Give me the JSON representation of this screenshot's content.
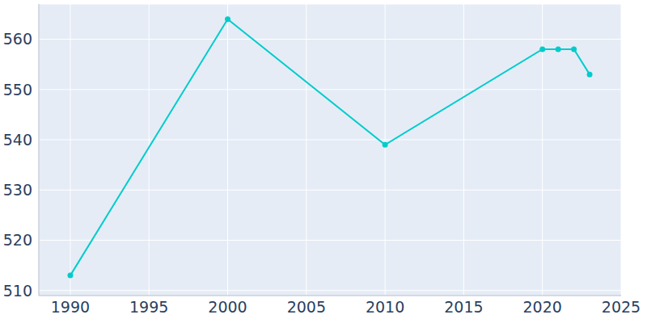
{
  "chart_data": {
    "type": "line",
    "x": [
      1990,
      2000,
      2010,
      2020,
      2021,
      2022,
      2023
    ],
    "values": [
      513,
      564,
      539,
      558,
      558,
      558,
      553
    ],
    "color": "#00cccc",
    "xlim": [
      1988,
      2025
    ],
    "xticks": [
      1990,
      1995,
      2000,
      2005,
      2010,
      2015,
      2020,
      2025
    ],
    "ylim": [
      509,
      567
    ],
    "yticks": [
      510,
      520,
      530,
      540,
      550,
      560
    ],
    "grid": true,
    "marker": "circle"
  }
}
